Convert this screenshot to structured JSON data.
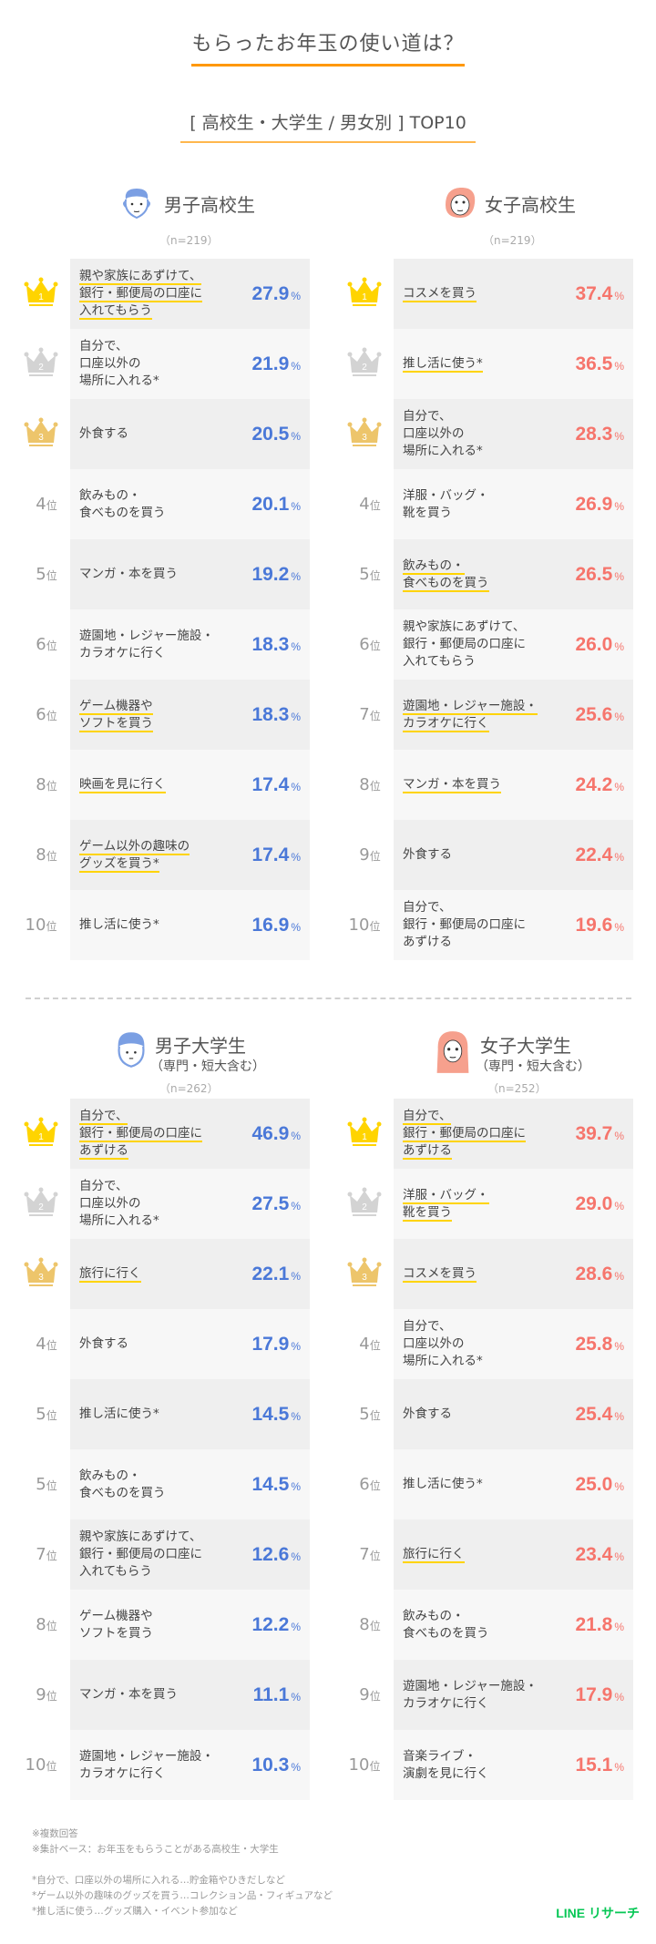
{
  "title": "もらったお年玉の使い道は？",
  "subtitle": "[ 高校生・大学生 / 男女別 ] TOP10",
  "colors": {
    "title_underline": "#ff9800",
    "male_pct": "#4a78d8",
    "female_pct": "#f6756c",
    "highlight_underline": "#ffd400",
    "brand": "#06c755",
    "gold": "#ffd400",
    "silver": "#d3d3d3",
    "bronze": "#edc56b"
  },
  "rank_suffix": "位",
  "percent_sign": "%",
  "groups": {
    "male_hs": {
      "name": "男子高校生",
      "sub": "",
      "n": "（n=219）",
      "avatar": "boy-face-icon",
      "rows": [
        {
          "rank": "1",
          "label": "親や家族にあずけて、\n銀行・郵便局の口座に\n入れてもらう",
          "pct": "27.9",
          "underline": true
        },
        {
          "rank": "2",
          "label": "自分で、\n口座以外の\n場所に入れる*",
          "pct": "21.9",
          "underline": false
        },
        {
          "rank": "3",
          "label": "外食する",
          "pct": "20.5",
          "underline": false
        },
        {
          "rank": "4",
          "label": "飲みもの・\n食べものを買う",
          "pct": "20.1",
          "underline": false
        },
        {
          "rank": "5",
          "label": "マンガ・本を買う",
          "pct": "19.2",
          "underline": false
        },
        {
          "rank": "6",
          "label": "遊園地・レジャー施設・\nカラオケに行く",
          "pct": "18.3",
          "underline": false
        },
        {
          "rank": "6",
          "label": "ゲーム機器や\nソフトを買う",
          "pct": "18.3",
          "underline": true
        },
        {
          "rank": "8",
          "label": "映画を見に行く",
          "pct": "17.4",
          "underline": true
        },
        {
          "rank": "8",
          "label": "ゲーム以外の趣味の\nグッズを買う*",
          "pct": "17.4",
          "underline": true
        },
        {
          "rank": "10",
          "label": "推し活に使う*",
          "pct": "16.9",
          "underline": false
        }
      ]
    },
    "female_hs": {
      "name": "女子高校生",
      "sub": "",
      "n": "（n=219）",
      "avatar": "girl-face-icon",
      "rows": [
        {
          "rank": "1",
          "label": "コスメを買う",
          "pct": "37.4",
          "underline": true
        },
        {
          "rank": "2",
          "label": "推し活に使う*",
          "pct": "36.5",
          "underline": true
        },
        {
          "rank": "3",
          "label": "自分で、\n口座以外の\n場所に入れる*",
          "pct": "28.3",
          "underline": false
        },
        {
          "rank": "4",
          "label": "洋服・バッグ・\n靴を買う",
          "pct": "26.9",
          "underline": false
        },
        {
          "rank": "5",
          "label": "飲みもの・\n食べものを買う",
          "pct": "26.5",
          "underline": true
        },
        {
          "rank": "6",
          "label": "親や家族にあずけて、\n銀行・郵便局の口座に\n入れてもらう",
          "pct": "26.0",
          "underline": false
        },
        {
          "rank": "7",
          "label": "遊園地・レジャー施設・\nカラオケに行く",
          "pct": "25.6",
          "underline": true
        },
        {
          "rank": "8",
          "label": "マンガ・本を買う",
          "pct": "24.2",
          "underline": true
        },
        {
          "rank": "9",
          "label": "外食する",
          "pct": "22.4",
          "underline": false
        },
        {
          "rank": "10",
          "label": "自分で、\n銀行・郵便局の口座に\nあずける",
          "pct": "19.6",
          "underline": false
        }
      ]
    },
    "male_univ": {
      "name": "男子大学生",
      "sub": "（専門・短大含む）",
      "n": "（n=262）",
      "avatar": "boy-face-icon",
      "rows": [
        {
          "rank": "1",
          "label": "自分で、\n銀行・郵便局の口座に\nあずける",
          "pct": "46.9",
          "underline": true
        },
        {
          "rank": "2",
          "label": "自分で、\n口座以外の\n場所に入れる*",
          "pct": "27.5",
          "underline": false
        },
        {
          "rank": "3",
          "label": "旅行に行く",
          "pct": "22.1",
          "underline": true
        },
        {
          "rank": "4",
          "label": "外食する",
          "pct": "17.9",
          "underline": false
        },
        {
          "rank": "5",
          "label": "推し活に使う*",
          "pct": "14.5",
          "underline": false
        },
        {
          "rank": "5",
          "label": "飲みもの・\n食べものを買う",
          "pct": "14.5",
          "underline": false
        },
        {
          "rank": "7",
          "label": "親や家族にあずけて、\n銀行・郵便局の口座に\n入れてもらう",
          "pct": "12.6",
          "underline": false
        },
        {
          "rank": "8",
          "label": "ゲーム機器や\nソフトを買う",
          "pct": "12.2",
          "underline": false
        },
        {
          "rank": "9",
          "label": "マンガ・本を買う",
          "pct": "11.1",
          "underline": false
        },
        {
          "rank": "10",
          "label": "遊園地・レジャー施設・\nカラオケに行く",
          "pct": "10.3",
          "underline": false
        }
      ]
    },
    "female_univ": {
      "name": "女子大学生",
      "sub": "（専門・短大含む）",
      "n": "（n=252）",
      "avatar": "girl-long-hair-icon",
      "rows": [
        {
          "rank": "1",
          "label": "自分で、\n銀行・郵便局の口座に\nあずける",
          "pct": "39.7",
          "underline": true
        },
        {
          "rank": "2",
          "label": "洋服・バッグ・\n靴を買う",
          "pct": "29.0",
          "underline": true
        },
        {
          "rank": "3",
          "label": "コスメを買う",
          "pct": "28.6",
          "underline": true
        },
        {
          "rank": "4",
          "label": "自分で、\n口座以外の\n場所に入れる*",
          "pct": "25.8",
          "underline": false
        },
        {
          "rank": "5",
          "label": "外食する",
          "pct": "25.4",
          "underline": false
        },
        {
          "rank": "6",
          "label": "推し活に使う*",
          "pct": "25.0",
          "underline": false
        },
        {
          "rank": "7",
          "label": "旅行に行く",
          "pct": "23.4",
          "underline": true
        },
        {
          "rank": "8",
          "label": "飲みもの・\n食べものを買う",
          "pct": "21.8",
          "underline": false
        },
        {
          "rank": "9",
          "label": "遊園地・レジャー施設・\nカラオケに行く",
          "pct": "17.9",
          "underline": false
        },
        {
          "rank": "10",
          "label": "音楽ライブ・\n演劇を見に行く",
          "pct": "15.1",
          "underline": false
        }
      ]
    }
  },
  "notes": [
    "※複数回答",
    "※集計ベース：お年玉をもらうことがある高校生・大学生",
    "",
    "*自分で、口座以外の場所に入れる…貯金箱やひきだしなど",
    "*ゲーム以外の趣味のグッズを買う…コレクション品・フィギュアなど",
    "*推し活に使う…グッズ購入・イベント参加など"
  ],
  "brand": "LINE リサーチ"
}
